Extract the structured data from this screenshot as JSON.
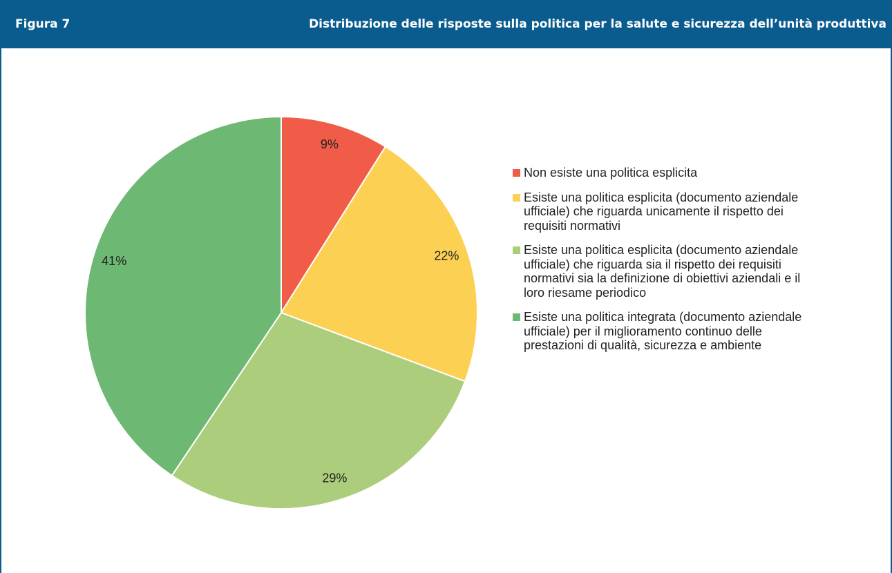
{
  "chart_data": {
    "type": "pie",
    "figure_label": "Figura 7",
    "title": "Distribuzione delle risposte sulla politica per la salute e sicurezza dell’unità produttiva",
    "categories": [
      "Non esiste una politica esplicita",
      "Esiste una politica esplicita (documento aziendale ufficiale) che riguarda unicamente il rispetto dei requisiti normativi",
      "Esiste una politica esplicita (documento aziendale ufficiale) che riguarda sia il rispetto dei requisiti normativi sia la definizione di obiettivi aziendali e il loro riesame periodico",
      "Esiste una politica integrata (documento aziendale ufficiale) per il miglioramento continuo delle prestazioni di qualità, sicurezza e ambiente"
    ],
    "values": [
      9,
      22,
      29,
      41
    ],
    "value_labels": [
      "9%",
      "22%",
      "29%",
      "41%"
    ],
    "colors": [
      "#f05c48",
      "#fcd053",
      "#accd7b",
      "#6db872"
    ],
    "legend": "right"
  }
}
